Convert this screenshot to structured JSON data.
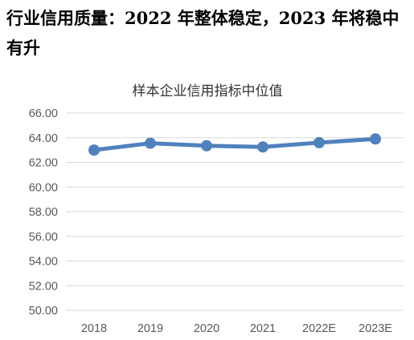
{
  "heading": "行业信用质量：2022 年整体稳定，2023 年将稳中有升",
  "colors": {
    "line": "#4f81bd",
    "grid": "#d9d9d9",
    "tick_text": "#595959",
    "title_text": "#333333"
  },
  "chart_data": {
    "type": "line",
    "title": "样本企业信用指标中位值",
    "categories": [
      "2018",
      "2019",
      "2020",
      "2021",
      "2022E",
      "2023E"
    ],
    "series": [
      {
        "values": [
          63.0,
          63.55,
          63.35,
          63.25,
          63.6,
          63.9
        ]
      }
    ],
    "ylim": [
      50,
      66
    ],
    "yticks": [
      50,
      52,
      54,
      56,
      58,
      60,
      62,
      64,
      66
    ],
    "ytick_labels": [
      "50.00",
      "52.00",
      "54.00",
      "56.00",
      "58.00",
      "60.00",
      "62.00",
      "64.00",
      "66.00"
    ],
    "grid": true,
    "legend": "none",
    "markers": true
  }
}
